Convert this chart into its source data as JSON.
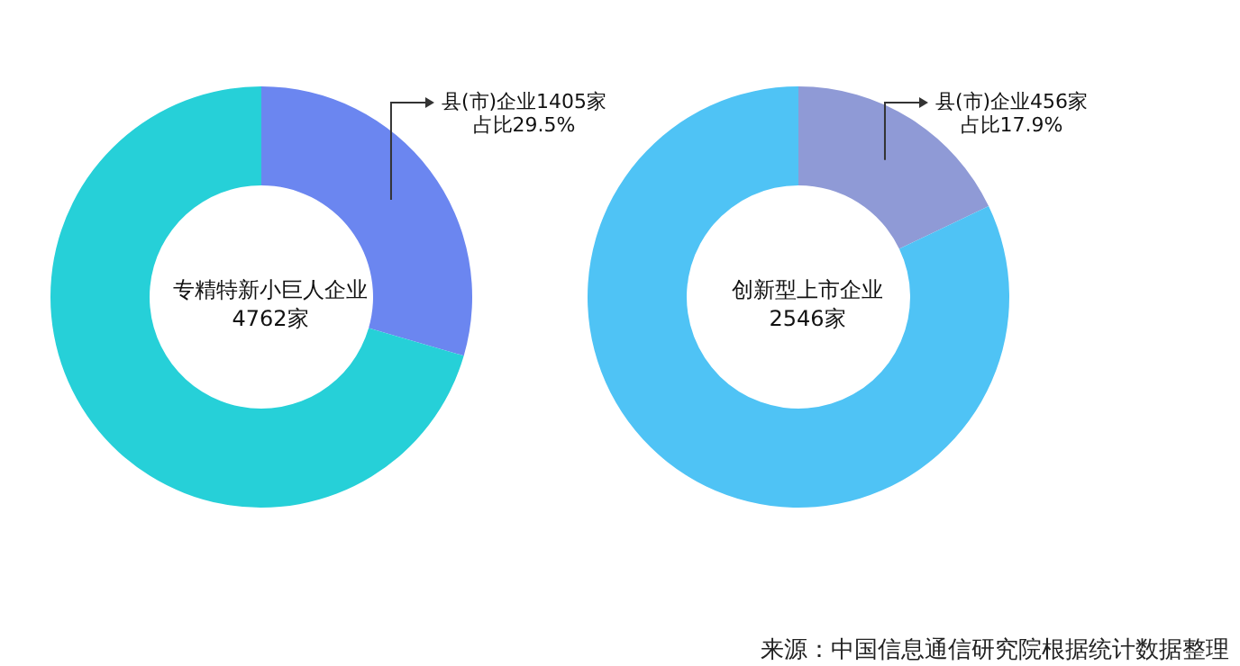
{
  "chart_data": [
    {
      "type": "donut",
      "title": "专精特新小巨人企业",
      "subtitle": "4762家",
      "categories": [
        "县(市)企业1405家",
        null
      ],
      "values": [
        29.5,
        70.5
      ],
      "colors": [
        "#6b86f0",
        "#26d0d8"
      ],
      "value_labels": [
        "占比29.5%",
        null
      ],
      "legend": false
    },
    {
      "type": "donut",
      "title": "创新型上市企业",
      "subtitle": "2546家",
      "categories": [
        "县(市)企业456家",
        null
      ],
      "values": [
        17.9,
        82.1
      ],
      "colors": [
        "#8f9ad6",
        "#4fc3f5"
      ],
      "value_labels": [
        "占比17.9%",
        null
      ],
      "legend": false,
      "annotations": [
        "来源：中国信息通信研究院根据统计数据整理"
      ]
    }
  ]
}
